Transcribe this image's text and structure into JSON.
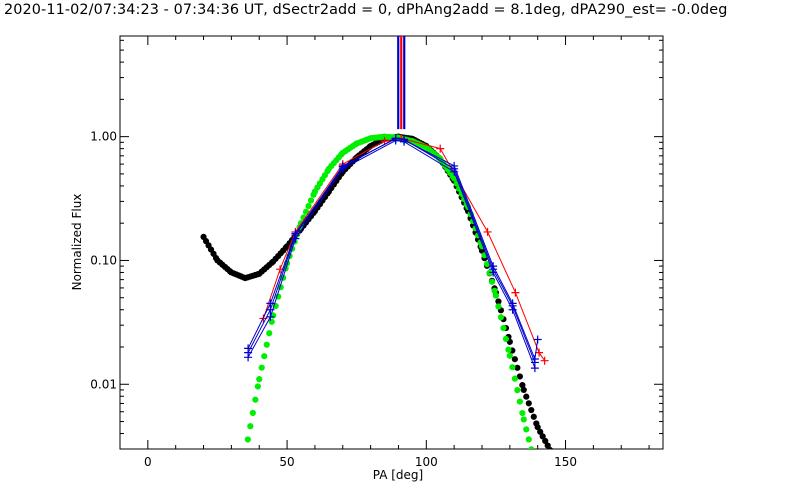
{
  "chart_data": {
    "type": "scatter",
    "title": "2020-11-02/07:34:23 - 07:34:36 UT, dSectr2add = 0, dPhAng2add = 8.1deg, dPA290_est= -0.0deg",
    "xlabel": "PA [deg]",
    "ylabel": "Normalized Flux",
    "xlim": [
      -10,
      185
    ],
    "ylim": [
      0.003,
      6.5
    ],
    "y_scale": "log",
    "grid": false,
    "x_ticks": [
      0,
      50,
      100,
      150
    ],
    "x_tick_labels": [
      "0",
      "50",
      "100",
      "150"
    ],
    "y_ticks": [
      0.01,
      0.1,
      1.0
    ],
    "y_tick_labels": [
      "0.01",
      "0.10",
      "1.00"
    ],
    "colors": {
      "red": "#ff0000",
      "blue": "#0000cc",
      "black": "#000000",
      "green": "#00ee00"
    },
    "series": [
      {
        "color": "red",
        "style": "line-plus",
        "x": [
          41.5,
          47.5,
          53.0,
          70.0,
          85.0,
          91.0,
          105.0,
          122.0,
          132.0,
          140.5,
          142.5
        ],
        "y": [
          0.034,
          0.085,
          0.17,
          0.6,
          0.92,
          0.97,
          0.8,
          0.17,
          0.055,
          0.018,
          0.0155
        ]
      },
      {
        "color": "blue",
        "style": "line-plus",
        "x": [
          36.0,
          44.0,
          53.0,
          70.0,
          89.0,
          92.0,
          110.0,
          124.0,
          131.0,
          139.0,
          140.0
        ],
        "y": [
          0.018,
          0.04,
          0.16,
          0.58,
          0.96,
          0.94,
          0.58,
          0.09,
          0.045,
          0.016,
          0.023
        ]
      },
      {
        "color": "blue",
        "style": "line-plus",
        "x": [
          36.0,
          44.0,
          53.0,
          70.0,
          89.0,
          92.0,
          110.0,
          124.0,
          131.0,
          139.0
        ],
        "y": [
          0.0165,
          0.035,
          0.15,
          0.55,
          0.93,
          0.91,
          0.52,
          0.08,
          0.04,
          0.0135
        ]
      },
      {
        "color": "blue",
        "style": "line-plus",
        "x": [
          36.0,
          44.0,
          53.0,
          70.0,
          89.0,
          92.0,
          110.0,
          124.0,
          131.0,
          139.0
        ],
        "y": [
          0.0195,
          0.045,
          0.165,
          0.57,
          0.97,
          0.95,
          0.55,
          0.085,
          0.043,
          0.015
        ]
      },
      {
        "color": "black",
        "style": "dotted-thick",
        "x": [
          20,
          25,
          30,
          35,
          40,
          45,
          50,
          55,
          60,
          65,
          70,
          75,
          80,
          85,
          90,
          95,
          100,
          105,
          110,
          115,
          120,
          125,
          130,
          135,
          140,
          145
        ],
        "y": [
          0.155,
          0.1,
          0.08,
          0.072,
          0.078,
          0.098,
          0.13,
          0.18,
          0.25,
          0.36,
          0.52,
          0.68,
          0.84,
          0.96,
          1.0,
          0.96,
          0.84,
          0.66,
          0.44,
          0.25,
          0.12,
          0.055,
          0.022,
          0.009,
          0.0045,
          0.0028
        ]
      },
      {
        "color": "green",
        "style": "dotted-thick",
        "x": [
          35,
          40,
          45,
          50,
          55,
          60,
          65,
          70,
          75,
          80,
          85,
          90,
          95,
          100,
          105,
          110,
          115,
          120,
          125,
          130,
          135,
          138
        ],
        "y": [
          0.0028,
          0.011,
          0.036,
          0.095,
          0.2,
          0.36,
          0.55,
          0.74,
          0.88,
          0.97,
          1.0,
          0.98,
          0.92,
          0.82,
          0.66,
          0.46,
          0.27,
          0.13,
          0.052,
          0.017,
          0.0052,
          0.0028
        ]
      }
    ],
    "markers": [
      {
        "type": "vertical-lines",
        "x": 91.0,
        "y_from": 1.15,
        "colors": [
          "red",
          "blue"
        ]
      }
    ]
  }
}
